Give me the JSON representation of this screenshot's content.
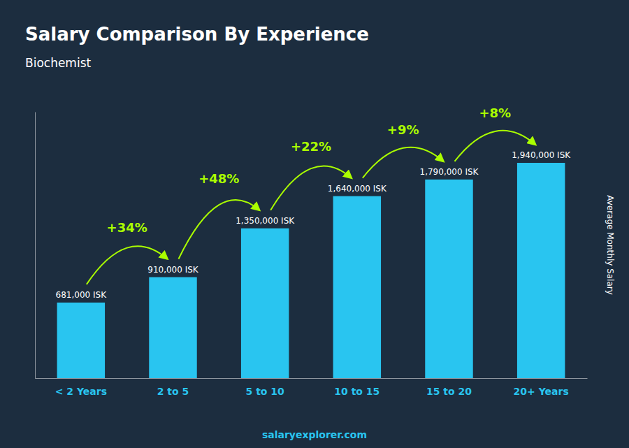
{
  "chart_data": {
    "type": "bar",
    "title": "Salary Comparison By Experience",
    "subtitle": "Biochemist",
    "ylabel": "Average Monthly Salary",
    "categories": [
      "< 2 Years",
      "2 to 5",
      "5 to 10",
      "10 to 15",
      "15 to 20",
      "20+ Years"
    ],
    "values": [
      681000,
      910000,
      1350000,
      1640000,
      1790000,
      1940000
    ],
    "value_labels": [
      "681,000 ISK",
      "910,000 ISK",
      "1,350,000 ISK",
      "1,640,000 ISK",
      "1,790,000 ISK",
      "1,940,000 ISK"
    ],
    "data_labels": true,
    "annotations": [
      "+34%",
      "+48%",
      "+22%",
      "+9%",
      "+8%"
    ],
    "source": "salaryexplorer.com",
    "color": "#29c5f0",
    "ylim": [
      0,
      2400000
    ],
    "tick_labels": "x",
    "grid": false
  }
}
